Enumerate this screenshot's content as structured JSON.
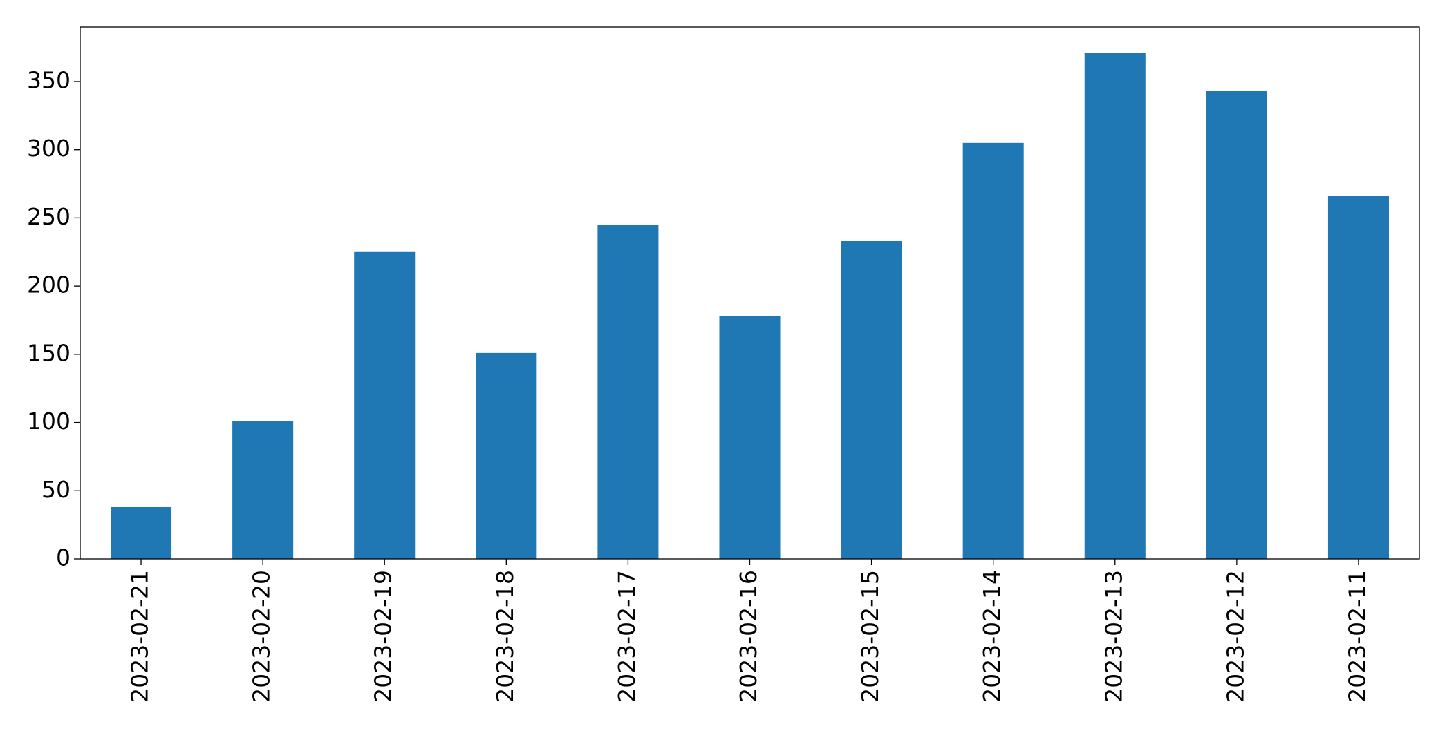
{
  "chart_data": {
    "type": "bar",
    "categories": [
      "2023-02-21",
      "2023-02-20",
      "2023-02-19",
      "2023-02-18",
      "2023-02-17",
      "2023-02-16",
      "2023-02-15",
      "2023-02-14",
      "2023-02-13",
      "2023-02-12",
      "2023-02-11"
    ],
    "values": [
      38,
      101,
      225,
      151,
      245,
      178,
      233,
      305,
      371,
      343,
      266
    ],
    "color": "#1f77b4",
    "ylim": [
      0,
      390
    ],
    "yticks": [
      0,
      50,
      100,
      150,
      200,
      250,
      300,
      350
    ],
    "grid": false
  }
}
